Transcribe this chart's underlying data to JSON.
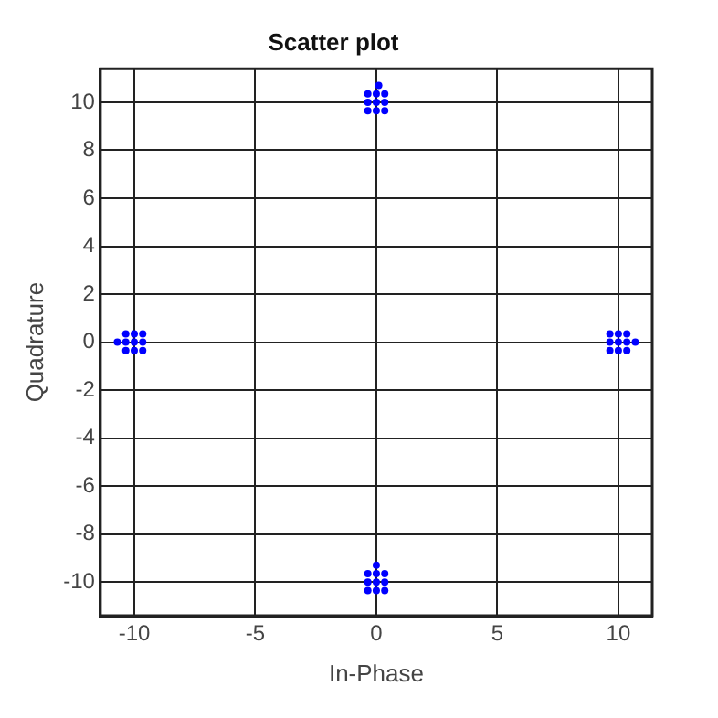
{
  "chart_data": {
    "type": "scatter",
    "title": "Scatter plot",
    "xlabel": "In-Phase",
    "ylabel": "Quadrature",
    "marker": "circle",
    "grid": true,
    "legend": false,
    "xlim": [
      -11.4,
      11.4
    ],
    "ylim": [
      -11.4,
      11.4
    ],
    "xticks": [
      -10,
      -5,
      0,
      5,
      10
    ],
    "yticks": [
      -10,
      -8,
      -6,
      -4,
      -2,
      0,
      2,
      4,
      6,
      8,
      10
    ],
    "series": [
      {
        "color": "#0000ff",
        "x": [
          0,
          0.35,
          -0.35,
          0,
          0,
          0.35,
          -0.35,
          0.35,
          -0.35,
          0.1
        ],
        "values": [
          10,
          10,
          10,
          10.35,
          9.65,
          10.35,
          9.65,
          9.65,
          10.35,
          10.7
        ]
      },
      {
        "color": "#0000ff",
        "x": [
          0,
          0.35,
          -0.35,
          0,
          0,
          0.35,
          -0.35,
          0.35,
          -0.35,
          0
        ],
        "values": [
          -10,
          -10,
          -10,
          -9.65,
          -10.35,
          -9.65,
          -10.35,
          -10.35,
          -9.65,
          -9.3
        ]
      },
      {
        "color": "#0000ff",
        "x": [
          -10,
          -9.65,
          -10.35,
          -10,
          -10,
          -9.65,
          -10.35,
          -9.65,
          -10.35,
          -10.7
        ],
        "values": [
          0,
          0,
          0,
          0.35,
          -0.35,
          0.35,
          -0.35,
          -0.35,
          0.35,
          0
        ]
      },
      {
        "color": "#0000ff",
        "x": [
          10,
          10.35,
          9.65,
          10,
          10,
          10.35,
          9.65,
          10.35,
          9.65,
          10.7
        ],
        "values": [
          0,
          0,
          0,
          0.35,
          -0.35,
          0.35,
          -0.35,
          -0.35,
          0.35,
          0
        ]
      }
    ]
  }
}
